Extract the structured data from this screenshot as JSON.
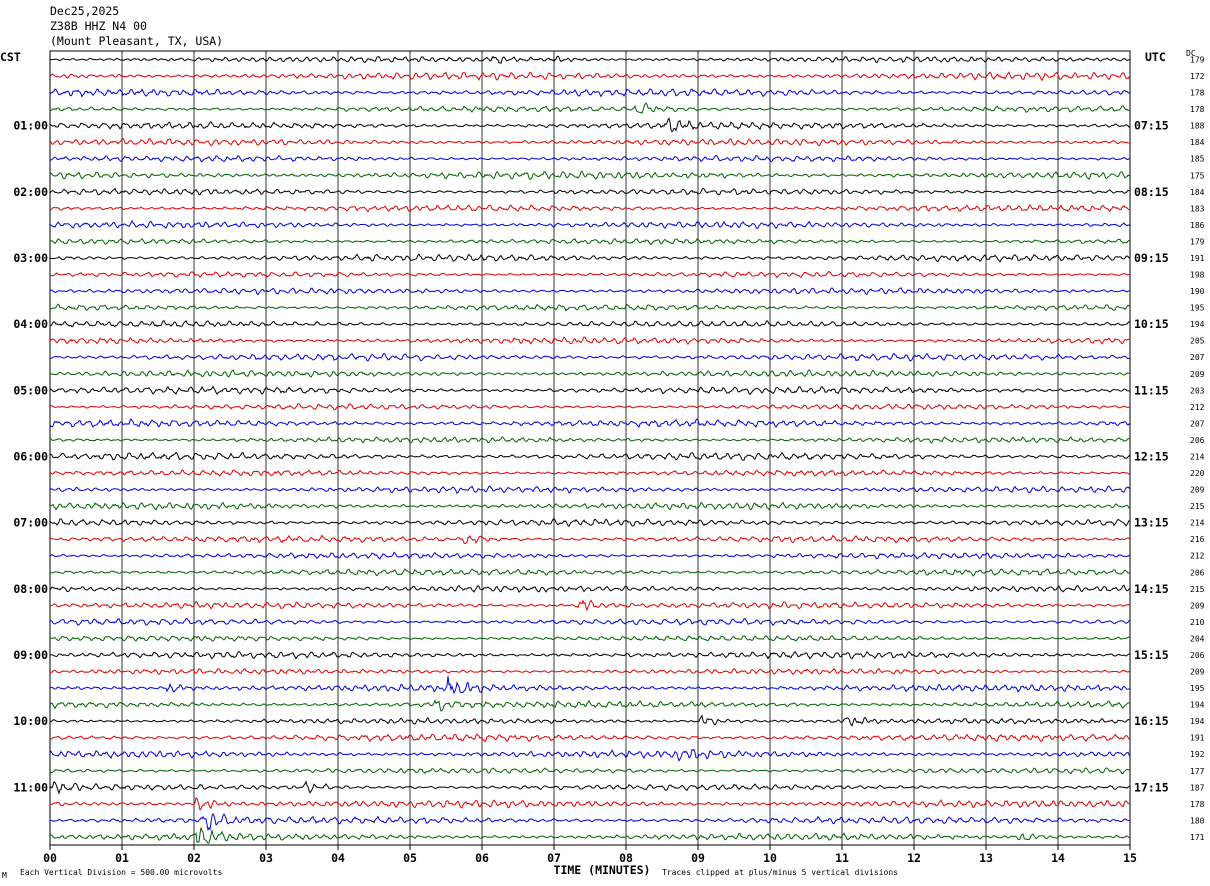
{
  "header": {
    "date": "Dec25,2025",
    "station": "Z38B HHZ N4 00",
    "location": "(Mount Pleasant, TX, USA)"
  },
  "left_timezone": "CST",
  "right_timezone": "UTC",
  "dc_header": "DC",
  "footer": {
    "scale_note": "Each Vertical Division =  500.00 microvolts",
    "clip_note": "Traces clipped at plus/minus 5 vertical divisions",
    "corner_mark": "M"
  },
  "colors": {
    "trace_cycle": [
      "#000000",
      "#e00000",
      "#0000dd",
      "#006400"
    ],
    "grid": "#000000",
    "background": "#ffffff"
  },
  "chart_data": {
    "type": "line",
    "title": "",
    "xlabel": "TIME (MINUTES)",
    "x_ticks": [
      "00",
      "01",
      "02",
      "03",
      "04",
      "05",
      "06",
      "07",
      "08",
      "09",
      "10",
      "11",
      "12",
      "13",
      "14",
      "15"
    ],
    "xlim": [
      0,
      15
    ],
    "left_hour_labels": [
      "01:00",
      "02:00",
      "03:00",
      "04:00",
      "05:00",
      "06:00",
      "07:00",
      "08:00",
      "09:00",
      "10:00",
      "11:00"
    ],
    "right_hour_labels": [
      "07:15",
      "08:15",
      "09:15",
      "10:15",
      "11:15",
      "12:15",
      "13:15",
      "14:15",
      "15:15",
      "16:15",
      "17:15"
    ],
    "trace_count": 48,
    "minutes_per_trace": 15,
    "dc_offsets": [
      179,
      172,
      178,
      178,
      188,
      184,
      185,
      175,
      184,
      183,
      186,
      179,
      191,
      198,
      190,
      195,
      194,
      205,
      207,
      209,
      203,
      212,
      207,
      206,
      214,
      220,
      209,
      215,
      214,
      216,
      212,
      206,
      215,
      209,
      210,
      204,
      206,
      209,
      195,
      194,
      194,
      191,
      192,
      177,
      187,
      178,
      180,
      171
    ],
    "events": [
      {
        "trace": 0,
        "minute": 6.2,
        "strength": 0.8
      },
      {
        "trace": 0,
        "minute": 7.0,
        "strength": 0.7
      },
      {
        "trace": 3,
        "minute": 8.2,
        "strength": 1.6
      },
      {
        "trace": 4,
        "minute": 8.6,
        "strength": 1.8
      },
      {
        "trace": 29,
        "minute": 5.8,
        "strength": 1.4
      },
      {
        "trace": 33,
        "minute": 7.4,
        "strength": 2.0
      },
      {
        "trace": 38,
        "minute": 5.6,
        "strength": 2.0
      },
      {
        "trace": 38,
        "minute": 1.7,
        "strength": 1.0
      },
      {
        "trace": 39,
        "minute": 5.4,
        "strength": 1.4
      },
      {
        "trace": 40,
        "minute": 9.1,
        "strength": 1.3
      },
      {
        "trace": 40,
        "minute": 11.1,
        "strength": 1.2
      },
      {
        "trace": 42,
        "minute": 8.8,
        "strength": 1.2
      },
      {
        "trace": 44,
        "minute": 0.1,
        "strength": 1.4
      },
      {
        "trace": 44,
        "minute": 3.6,
        "strength": 1.4
      },
      {
        "trace": 45,
        "minute": 2.1,
        "strength": 1.6
      },
      {
        "trace": 46,
        "minute": 2.2,
        "strength": 2.6
      },
      {
        "trace": 47,
        "minute": 2.1,
        "strength": 2.4
      },
      {
        "trace": 47,
        "minute": 13.5,
        "strength": 1.0
      }
    ]
  }
}
